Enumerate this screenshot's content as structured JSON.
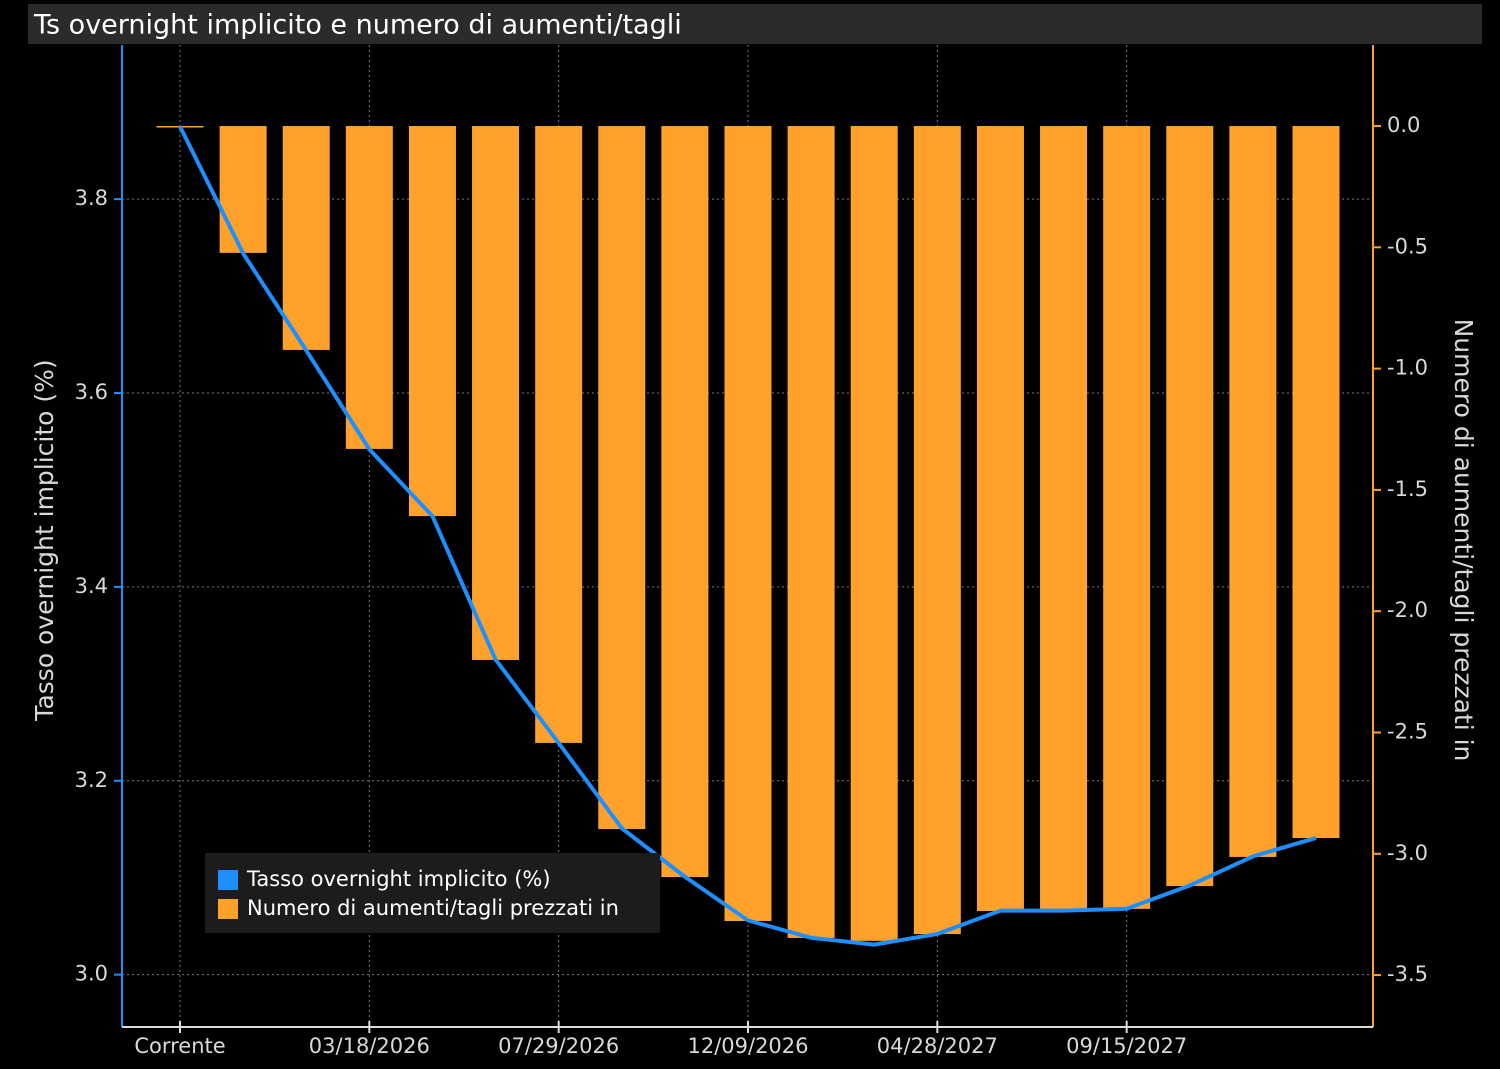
{
  "chart_data": {
    "type": "bar",
    "title": "Ts overnight implicito e numero di aumenti/tagli",
    "y_label": "Tasso overnight implicito (%)",
    "y2_label": "Numero di aumenti/tagli prezzati in",
    "categories": [
      "Corrente",
      null,
      null,
      "03/18/2026",
      null,
      null,
      "07/29/2026",
      null,
      null,
      "12/09/2026",
      null,
      null,
      "04/28/2027",
      null,
      null,
      "09/15/2027",
      null,
      null,
      null
    ],
    "series": [
      {
        "name": "Tasso overnight implicito (%)",
        "type": "line",
        "color": "#1e8fff",
        "axis": "y",
        "values": [
          3.875,
          3.744,
          3.644,
          3.542,
          3.473,
          3.325,
          3.239,
          3.151,
          3.101,
          3.056,
          3.038,
          3.031,
          3.042,
          3.066,
          3.066,
          3.068,
          3.092,
          3.122,
          3.141
        ]
      },
      {
        "name": "Numero di aumenti/tagli prezzati in",
        "type": "bar",
        "color": "#ffa12b",
        "axis": "y2",
        "values": [
          0,
          -0.523,
          -0.923,
          -1.331,
          -1.608,
          -2.201,
          -2.543,
          -2.898,
          -3.096,
          -3.277,
          -3.347,
          -3.359,
          -3.331,
          -3.236,
          -3.227,
          -3.227,
          -3.133,
          -3.013,
          -2.935
        ]
      }
    ],
    "ylim": [
      2.946,
      3.959
    ],
    "yticks": [
      {
        "value": 3.0,
        "label": "3.0"
      },
      3.2,
      3.4,
      3.6,
      3.8
    ],
    "y2lim": [
      -3.714,
      0.334
    ],
    "y2ticks": [
      {
        "value": 0,
        "label": "0.0"
      },
      -0.5,
      {
        "value": -1,
        "label": "-1.0"
      },
      -1.5,
      {
        "value": -2,
        "label": "-2.0"
      },
      -2.5,
      {
        "value": -3,
        "label": "-3.0"
      },
      -3.5
    ],
    "grid": true,
    "legend": "lower left"
  }
}
